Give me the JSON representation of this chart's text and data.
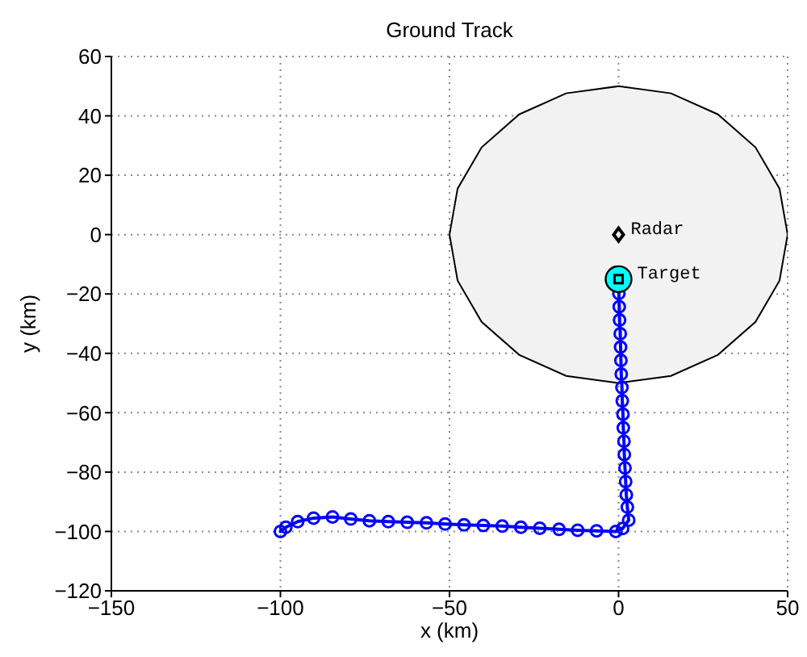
{
  "chart_data": {
    "type": "line",
    "title": "Ground Track",
    "xlabel": "x (km)",
    "ylabel": "y (km)",
    "xlim": [
      -150,
      50
    ],
    "xticks": [
      -150,
      -100,
      -50,
      0,
      50
    ],
    "ylim": [
      -120,
      60
    ],
    "yticks": [
      -120,
      -100,
      -80,
      -60,
      -40,
      -20,
      0,
      20,
      40,
      60
    ],
    "grid": true,
    "series": [
      {
        "type": "area",
        "color": "#f2f2f2",
        "x": [
          0,
          15.5,
          29.4,
          40.5,
          47.6,
          50,
          47.6,
          40.5,
          29.4,
          15.5,
          0,
          -15.5,
          -29.4,
          -40.5,
          -47.6,
          -50,
          -47.6,
          -40.5,
          -29.4,
          -15.5,
          0
        ],
        "values": [
          50,
          47.6,
          40.5,
          29.4,
          15.5,
          0,
          -15.5,
          -29.4,
          -40.5,
          -47.6,
          -50,
          -47.6,
          -40.5,
          -29.4,
          -15.5,
          0,
          15.5,
          29.4,
          40.5,
          47.6,
          50
        ]
      },
      {
        "color": "#0000ff",
        "marker": "circle",
        "x": [
          -100,
          -98.4,
          -94.9,
          -90.2,
          -84.6,
          -79.2,
          -73.7,
          -68.1,
          -62.5,
          -56.8,
          -51.3,
          -45.7,
          -40,
          -34.4,
          -28.9,
          -23.3,
          -17.6,
          -12.1,
          -6.5,
          -0.8,
          1.2,
          3,
          2.6,
          2.3,
          2.1,
          1.9,
          1.7,
          1.6,
          1.4,
          1.3,
          1.1,
          1,
          0.8,
          0.7,
          0.6,
          0.5,
          0.3,
          0.2,
          0.1
        ],
        "values": [
          -100,
          -98.6,
          -96.7,
          -95.5,
          -95.1,
          -95.8,
          -96.4,
          -96.7,
          -96.9,
          -97.1,
          -97.5,
          -97.8,
          -98,
          -98.2,
          -98.6,
          -98.9,
          -99.3,
          -99.6,
          -99.8,
          -100,
          -99,
          -96.2,
          -91.8,
          -87.7,
          -83.2,
          -78.6,
          -74.1,
          -69.6,
          -65.1,
          -60.5,
          -56,
          -51.5,
          -47,
          -42.4,
          -37.9,
          -33.4,
          -28.8,
          -24.3,
          -19.8
        ]
      },
      {
        "type": "scatter",
        "color": "#00ffff",
        "marker": "circle",
        "x": [
          0
        ],
        "values": [
          -15
        ]
      },
      {
        "type": "scatter",
        "name": "Target",
        "color": "#000000",
        "marker": "square",
        "x": [
          0
        ],
        "values": [
          -15
        ]
      },
      {
        "type": "scatter",
        "name": "Radar",
        "color": "#000000",
        "marker": "diamond",
        "x": [
          0
        ],
        "values": [
          0
        ]
      }
    ]
  }
}
